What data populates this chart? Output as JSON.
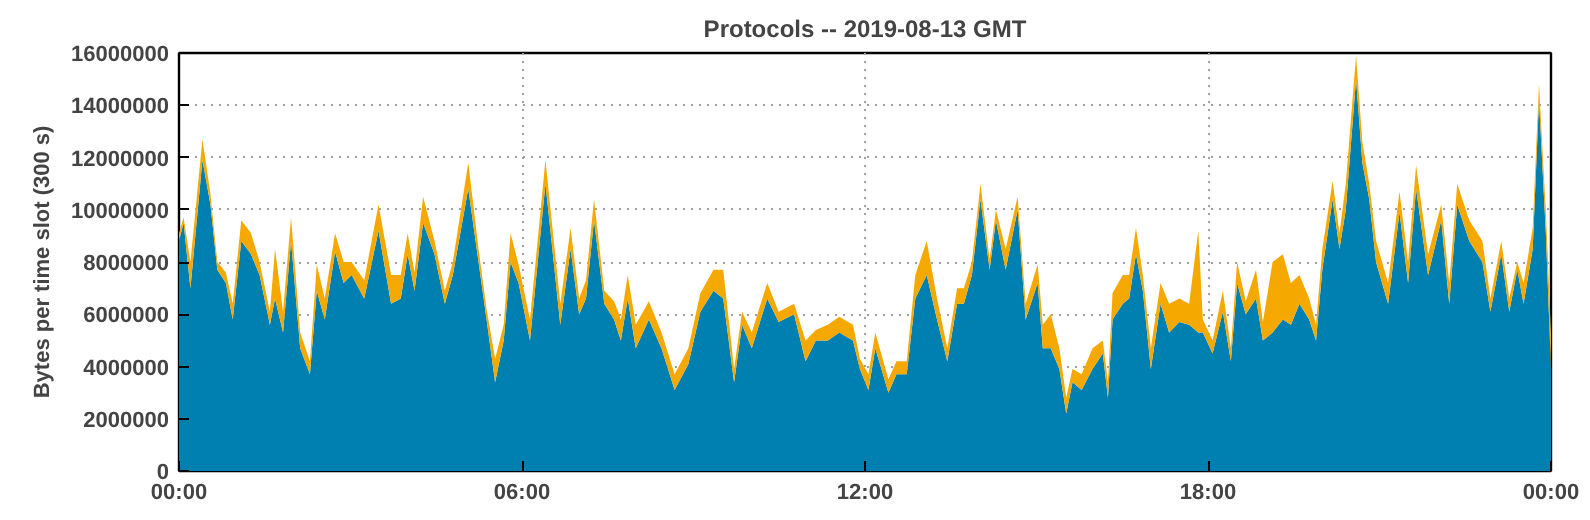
{
  "chart_data": {
    "type": "area",
    "stacked": true,
    "title": "Protocols -- 2019-08-13 GMT",
    "ylabel": "Bytes per time slot (300 s)",
    "x": [
      0,
      0.08,
      0.2,
      0.41,
      0.55,
      0.67,
      0.82,
      0.94,
      1.09,
      1.26,
      1.41,
      1.59,
      1.68,
      1.82,
      1.96,
      2.12,
      2.29,
      2.41,
      2.55,
      2.73,
      2.88,
      3.02,
      3.24,
      3.49,
      3.71,
      3.88,
      4.0,
      4.12,
      4.27,
      4.47,
      4.65,
      4.79,
      5.06,
      5.24,
      5.38,
      5.53,
      5.68,
      5.8,
      5.94,
      6.14,
      6.41,
      6.67,
      6.85,
      7.0,
      7.12,
      7.26,
      7.44,
      7.61,
      7.73,
      7.85,
      7.99,
      8.22,
      8.44,
      8.67,
      8.91,
      9.12,
      9.35,
      9.52,
      9.71,
      9.85,
      10.02,
      10.29,
      10.49,
      10.76,
      10.96,
      11.14,
      11.35,
      11.55,
      11.79,
      11.91,
      12.06,
      12.18,
      12.41,
      12.55,
      12.73,
      12.88,
      13.08,
      13.26,
      13.44,
      13.61,
      13.73,
      13.87,
      14.02,
      14.18,
      14.29,
      14.46,
      14.67,
      14.81,
      15.02,
      15.11,
      15.25,
      15.4,
      15.52,
      15.63,
      15.79,
      15.98,
      16.16,
      16.25,
      16.33,
      16.51,
      16.62,
      16.74,
      16.86,
      17.0,
      17.17,
      17.32,
      17.5,
      17.67,
      17.83,
      17.91,
      18.08,
      18.26,
      18.4,
      18.51,
      18.66,
      18.84,
      18.96,
      19.13,
      19.31,
      19.45,
      19.6,
      19.77,
      19.89,
      20.0,
      20.18,
      20.3,
      20.41,
      20.59,
      20.7,
      20.82,
      20.94,
      21.15,
      21.35,
      21.5,
      21.64,
      21.85,
      22.08,
      22.22,
      22.36,
      22.57,
      22.8,
      22.94,
      23.13,
      23.27,
      23.41,
      23.52,
      23.68,
      23.79,
      23.91,
      24.0
    ],
    "series": [
      {
        "color": "#0080b0",
        "values": [
          8800000,
          9500000,
          7000000,
          11900000,
          10200000,
          7700000,
          7200000,
          5800000,
          8800000,
          8300000,
          7500000,
          5600000,
          6600000,
          5300000,
          8800000,
          4700000,
          3700000,
          6900000,
          5800000,
          8400000,
          7200000,
          7500000,
          6600000,
          9200000,
          6400000,
          6600000,
          8300000,
          6900000,
          9500000,
          8300000,
          6400000,
          7500000,
          10800000,
          8000000,
          5800000,
          3400000,
          5000000,
          8000000,
          7200000,
          5000000,
          11000000,
          5600000,
          8500000,
          6000000,
          6600000,
          9600000,
          6400000,
          5800000,
          5000000,
          6600000,
          4700000,
          5800000,
          4700000,
          3100000,
          4100000,
          6100000,
          6900000,
          6600000,
          3400000,
          5600000,
          4700000,
          6600000,
          5700000,
          6000000,
          4200000,
          5000000,
          5000000,
          5300000,
          5000000,
          3900000,
          3100000,
          4700000,
          3000000,
          3700000,
          3700000,
          6600000,
          7500000,
          5800000,
          4200000,
          6400000,
          6400000,
          7500000,
          10400000,
          7700000,
          9600000,
          7700000,
          10000000,
          5800000,
          7200000,
          4700000,
          4700000,
          3900000,
          2200000,
          3400000,
          3100000,
          3900000,
          4500000,
          2800000,
          5800000,
          6400000,
          6600000,
          8300000,
          6900000,
          3900000,
          6400000,
          5300000,
          5700000,
          5600000,
          5300000,
          5300000,
          4500000,
          6100000,
          4200000,
          7200000,
          6000000,
          6600000,
          5000000,
          5300000,
          5800000,
          5600000,
          6400000,
          5800000,
          5000000,
          7700000,
          10400000,
          8500000,
          10000000,
          15000000,
          11800000,
          10400000,
          8000000,
          6400000,
          9900000,
          7200000,
          10800000,
          7500000,
          9600000,
          6400000,
          10200000,
          8800000,
          8000000,
          6100000,
          8300000,
          6100000,
          7700000,
          6400000,
          8500000,
          14200000,
          9100000,
          3900000
        ]
      },
      {
        "color": "#f5a800",
        "values": [
          300000,
          200000,
          1000000,
          800000,
          400000,
          300000,
          400000,
          600000,
          800000,
          800000,
          500000,
          500000,
          1900000,
          800000,
          900000,
          600000,
          500000,
          1000000,
          800000,
          700000,
          800000,
          500000,
          700000,
          1000000,
          1100000,
          900000,
          800000,
          700000,
          1000000,
          500000,
          500000,
          500000,
          1000000,
          500000,
          400000,
          900000,
          600000,
          1100000,
          700000,
          800000,
          900000,
          800000,
          800000,
          600000,
          700000,
          800000,
          500000,
          700000,
          800000,
          900000,
          900000,
          700000,
          600000,
          600000,
          600000,
          700000,
          800000,
          1100000,
          500000,
          500000,
          600000,
          600000,
          400000,
          400000,
          800000,
          400000,
          600000,
          600000,
          600000,
          400000,
          600000,
          600000,
          500000,
          500000,
          500000,
          900000,
          1300000,
          800000,
          500000,
          600000,
          600000,
          500000,
          600000,
          400000,
          400000,
          800000,
          500000,
          600000,
          700000,
          900000,
          1300000,
          800000,
          600000,
          500000,
          600000,
          800000,
          500000,
          600000,
          1000000,
          1100000,
          900000,
          1000000,
          600000,
          800000,
          800000,
          1100000,
          900000,
          800000,
          3900000,
          500000,
          500000,
          800000,
          500000,
          800000,
          500000,
          1100000,
          700000,
          2700000,
          2500000,
          1600000,
          1100000,
          800000,
          600000,
          800000,
          700000,
          600000,
          1000000,
          900000,
          800000,
          600000,
          800000,
          800000,
          800000,
          800000,
          900000,
          800000,
          600000,
          800000,
          800000,
          800000,
          800000,
          500000,
          500000,
          500000,
          300000,
          800000,
          800000,
          600000,
          800000,
          1400000
        ]
      }
    ],
    "xlim": [
      0,
      24
    ],
    "xticks": [
      {
        "value": 0,
        "label": "00:00"
      },
      {
        "value": 6,
        "label": "06:00"
      },
      {
        "value": 12,
        "label": "12:00"
      },
      {
        "value": 18,
        "label": "18:00"
      },
      {
        "value": 24,
        "label": "00:00"
      }
    ],
    "ylim": [
      0,
      16000000
    ],
    "yticks": [
      0,
      2000000,
      4000000,
      6000000,
      8000000,
      10000000,
      12000000,
      14000000,
      16000000
    ],
    "grid": true
  }
}
